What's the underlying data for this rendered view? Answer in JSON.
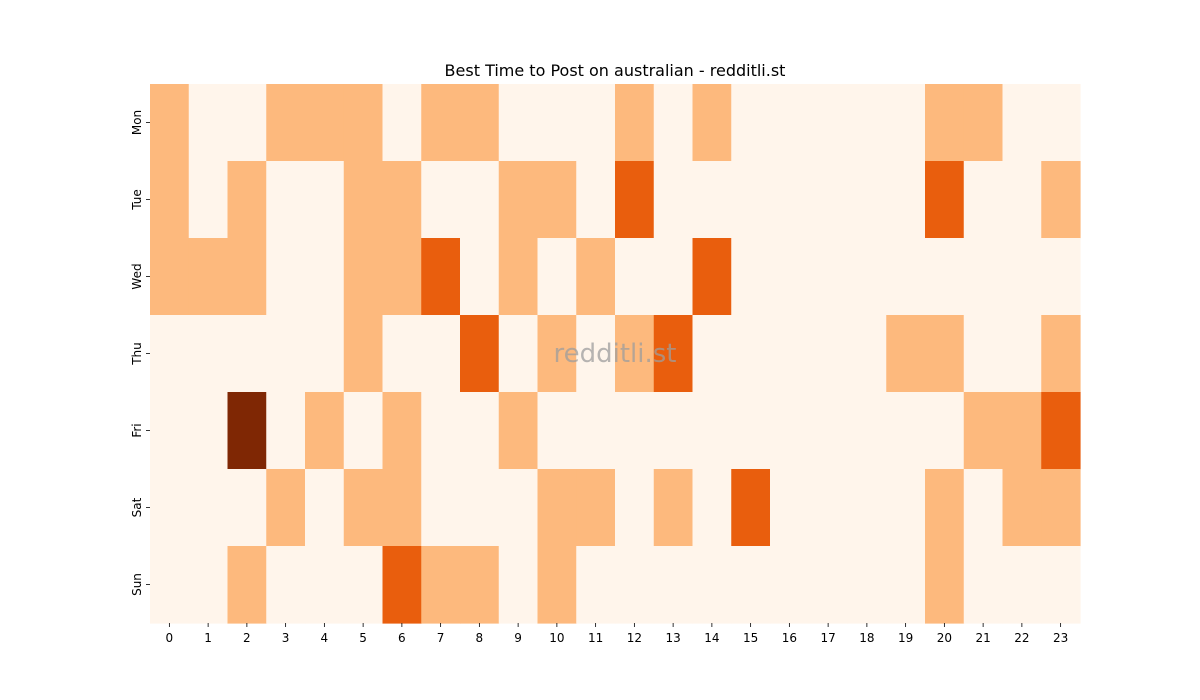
{
  "chart_data": {
    "type": "heatmap",
    "title": "Best Time to Post on australian - redditli.st",
    "watermark": "redditli.st",
    "x": [
      "0",
      "1",
      "2",
      "3",
      "4",
      "5",
      "6",
      "7",
      "8",
      "9",
      "10",
      "11",
      "12",
      "13",
      "14",
      "15",
      "16",
      "17",
      "18",
      "19",
      "20",
      "21",
      "22",
      "23"
    ],
    "y": [
      "Mon",
      "Tue",
      "Wed",
      "Thu",
      "Fri",
      "Sat",
      "Sun"
    ],
    "values": [
      [
        1,
        0,
        0,
        1,
        1,
        1,
        0,
        1,
        1,
        0,
        0,
        0,
        1,
        0,
        1,
        0,
        0,
        0,
        0,
        0,
        1,
        1,
        0,
        0
      ],
      [
        1,
        0,
        1,
        0,
        0,
        1,
        1,
        0,
        0,
        1,
        1,
        0,
        2,
        0,
        0,
        0,
        0,
        0,
        0,
        0,
        2,
        0,
        0,
        1
      ],
      [
        1,
        1,
        1,
        0,
        0,
        1,
        1,
        2,
        0,
        1,
        0,
        1,
        0,
        0,
        2,
        0,
        0,
        0,
        0,
        0,
        0,
        0,
        0,
        0
      ],
      [
        0,
        0,
        0,
        0,
        0,
        1,
        0,
        0,
        2,
        0,
        1,
        0,
        1,
        2,
        0,
        0,
        0,
        0,
        0,
        1,
        1,
        0,
        0,
        1
      ],
      [
        0,
        0,
        3,
        0,
        1,
        0,
        1,
        0,
        0,
        1,
        0,
        0,
        0,
        0,
        0,
        0,
        0,
        0,
        0,
        0,
        0,
        1,
        1,
        2
      ],
      [
        0,
        0,
        0,
        1,
        0,
        1,
        1,
        0,
        0,
        0,
        1,
        1,
        0,
        1,
        0,
        2,
        0,
        0,
        0,
        0,
        1,
        0,
        1,
        1
      ],
      [
        0,
        0,
        1,
        0,
        0,
        0,
        2,
        1,
        1,
        0,
        1,
        0,
        0,
        0,
        0,
        0,
        0,
        0,
        0,
        0,
        1,
        0,
        0,
        0
      ]
    ],
    "value_range": [
      0,
      3
    ],
    "colorscale": [
      "#fff5eb",
      "#fdb97d",
      "#e95e0d",
      "#7f2704"
    ],
    "colorbar": false
  }
}
